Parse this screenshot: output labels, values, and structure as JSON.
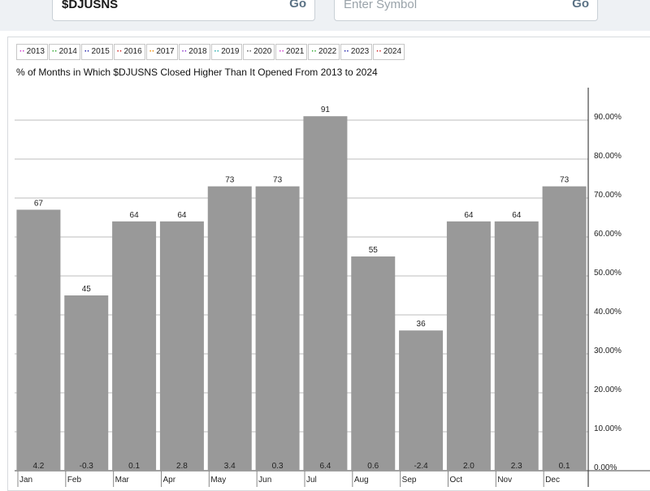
{
  "search": {
    "current_symbol": "$DJUSNS",
    "go_label": "Go",
    "placeholder": "Enter Symbol",
    "go_label_2": "Go"
  },
  "legend": {
    "years": [
      {
        "label": "2013",
        "color": "#cc33cc"
      },
      {
        "label": "2014",
        "color": "#33aa33"
      },
      {
        "label": "2015",
        "color": "#2222aa"
      },
      {
        "label": "2016",
        "color": "#cc2222"
      },
      {
        "label": "2017",
        "color": "#ee8800"
      },
      {
        "label": "2018",
        "color": "#8833cc"
      },
      {
        "label": "2019",
        "color": "#22aaaa"
      },
      {
        "label": "2020",
        "color": "#555555"
      },
      {
        "label": "2021",
        "color": "#cc33cc"
      },
      {
        "label": "2022",
        "color": "#33aa33"
      },
      {
        "label": "2023",
        "color": "#2222aa"
      },
      {
        "label": "2024",
        "color": "#cc2222"
      }
    ]
  },
  "chart_data": {
    "type": "bar",
    "title": "% of Months in Which $DJUSNS Closed Higher Than It Opened From 2013 to 2024",
    "categories": [
      "Jan",
      "Feb",
      "Mar",
      "Apr",
      "May",
      "Jun",
      "Jul",
      "Aug",
      "Sep",
      "Oct",
      "Nov",
      "Dec"
    ],
    "values": [
      67,
      45,
      64,
      64,
      73,
      73,
      91,
      55,
      36,
      64,
      64,
      73
    ],
    "value_labels": [
      "67",
      "45",
      "64",
      "64",
      "73",
      "73",
      "91",
      "55",
      "36",
      "64",
      "64",
      "73"
    ],
    "bottom_labels": [
      "4.2",
      "-0.3",
      "0.1",
      "2.8",
      "3.4",
      "0.3",
      "6.4",
      "0.6",
      "-2.4",
      "2.0",
      "2.3",
      "0.1"
    ],
    "ylim": [
      0,
      100
    ],
    "y_ticks": [
      {
        "value": 0,
        "label": "0.00%"
      },
      {
        "value": 10,
        "label": "10.00%"
      },
      {
        "value": 20,
        "label": "20.00%"
      },
      {
        "value": 30,
        "label": "30.00%"
      },
      {
        "value": 40,
        "label": "40.00%"
      },
      {
        "value": 50,
        "label": "50.00%"
      },
      {
        "value": 60,
        "label": "60.00%"
      },
      {
        "value": 70,
        "label": "70.00%"
      },
      {
        "value": 80,
        "label": "80.00%"
      },
      {
        "value": 90,
        "label": "90.00%"
      }
    ],
    "y_axis_side": "right",
    "grid": true,
    "bar_color": "#999999"
  }
}
